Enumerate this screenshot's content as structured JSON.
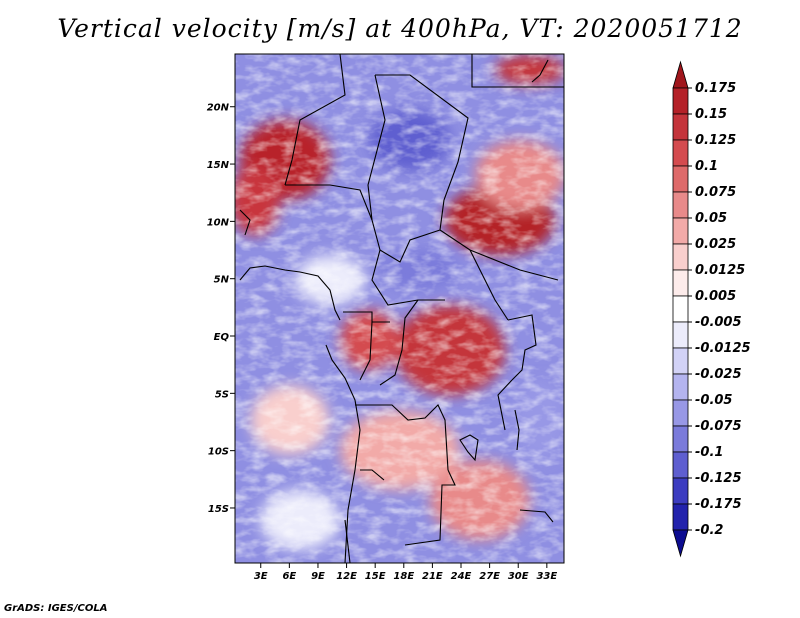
{
  "title": "Vertical velocity [m/s] at 400hPa, VT: 2020051712",
  "credit": "GrADS: IGES/COLA",
  "map": {
    "lat_labels": [
      "20N",
      "15N",
      "10N",
      "5N",
      "EQ",
      "5S",
      "10S",
      "15S"
    ],
    "lat_values": [
      20,
      15,
      10,
      5,
      0,
      -5,
      -10,
      -15
    ],
    "lon_labels": [
      "3E",
      "6E",
      "9E",
      "12E",
      "15E",
      "18E",
      "21E",
      "24E",
      "27E",
      "30E",
      "33E"
    ],
    "lon_values": [
      3,
      6,
      9,
      12,
      15,
      18,
      21,
      24,
      27,
      30,
      33
    ],
    "lat_range": [
      -19.8,
      24.6
    ],
    "lon_range": [
      0.3,
      34.8
    ]
  },
  "colorbar": {
    "labels": [
      "0.175",
      "0.15",
      "0.125",
      "0.1",
      "0.075",
      "0.05",
      "0.025",
      "0.0125",
      "0.005",
      "-0.005",
      "-0.0125",
      "-0.025",
      "-0.05",
      "-0.075",
      "-0.1",
      "-0.125",
      "-0.175",
      "-0.2"
    ],
    "colors": [
      "#a0161c",
      "#b42128",
      "#c4343b",
      "#d44b4f",
      "#de6a6a",
      "#e88a8a",
      "#f2aaa8",
      "#f9cfcd",
      "#fdeceb",
      "#ffffff",
      "#ececfb",
      "#d2d2f6",
      "#b4b4ef",
      "#9898e6",
      "#7b7bdb",
      "#5e5ed0",
      "#3c3cc0",
      "#2222ac",
      "#0c0c90"
    ]
  }
}
